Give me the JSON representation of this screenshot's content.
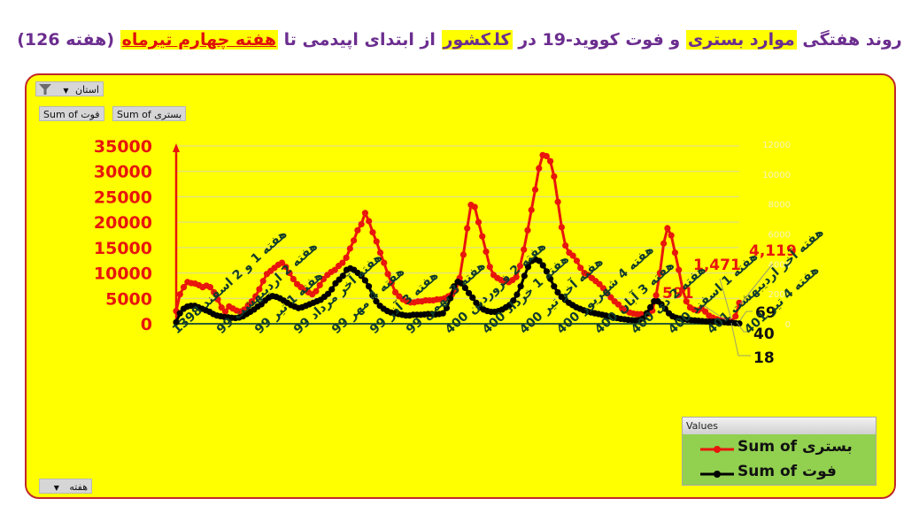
{
  "title": {
    "parts": [
      {
        "text": "روند هفتگی ",
        "style": "plain"
      },
      {
        "text": "موارد بستری",
        "style": "hl"
      },
      {
        "text": " و فوت کووید-19 در ",
        "style": "plain"
      },
      {
        "text": "کل",
        "style": "hl"
      },
      {
        "text": "کشور",
        "style": "hl"
      },
      {
        "text": " از ابتدای اپیدمی تا ",
        "style": "plain"
      },
      {
        "text": "هفته چهارم تیرماه",
        "style": "hl-red"
      },
      {
        "text": " (هفته 126)",
        "style": "plain"
      }
    ]
  },
  "controls": {
    "province_filter": "استان",
    "sum_hospitalized": "Sum of بستری",
    "sum_deaths": "Sum of فوت",
    "week_field": "هفته"
  },
  "legend": {
    "header": "Values",
    "items": [
      {
        "label": "Sum of بستری",
        "color": "#e8160c"
      },
      {
        "label": "Sum of فوت",
        "color": "#000000"
      }
    ]
  },
  "chart_data": {
    "type": "line",
    "title": "روند هفتگی موارد بستری و فوت کووید-19 در کل کشور از ابتدای اپیدمی تا هفته چهارم تیرماه (هفته 126)",
    "xlabel": "هفته",
    "ylabel": "",
    "ylim": [
      0,
      35000
    ],
    "y2lim": [
      0,
      12000
    ],
    "y_ticks": [
      0,
      5000,
      10000,
      15000,
      20000,
      25000,
      30000,
      35000
    ],
    "y2_ticks": [
      0,
      2000,
      4000,
      6000,
      8000,
      10000,
      12000
    ],
    "grid": true,
    "legend_position": "bottom-right",
    "categories": [
      "هفته 1 و 2 اسفند 1398",
      "هفته 2 اردیبهشت 99",
      "هفته 1 تیر 99",
      "هفته آخر مرداد 99",
      "هفته 4 مهر 99",
      "هفته 3 آذر 99",
      "هفته 3 بهمن 99",
      "هفته 2 فروردین 400",
      "هفته 1 خرداد 400",
      "هفته آخر تیر 400",
      "هفته 4 شهریور 400",
      "هفته 3 آبان 400",
      "هفته 2 دی 400",
      "هفته 1 اسفند 400",
      "هفته آخر اردیبهشت 401",
      "هفته 4 تیر 401"
    ],
    "series": [
      {
        "name": "Sum of بستری",
        "axis": "left",
        "color": "#e8160c",
        "values": [
          2500,
          5800,
          7200,
          8200,
          8000,
          7900,
          7600,
          7200,
          7500,
          7200,
          6200,
          4800,
          3200,
          2400,
          3400,
          3000,
          2600,
          2400,
          2800,
          3600,
          4400,
          5400,
          6800,
          8400,
          9800,
          10400,
          11000,
          11600,
          12000,
          11200,
          10000,
          8800,
          7800,
          7200,
          6600,
          6200,
          5800,
          6400,
          7600,
          8800,
          9600,
          10200,
          10600,
          11400,
          12000,
          13000,
          14800,
          16400,
          18400,
          19600,
          21800,
          20200,
          18000,
          16200,
          14000,
          12000,
          9800,
          8000,
          6200,
          5400,
          4800,
          4400,
          4200,
          4200,
          4400,
          4400,
          4600,
          4600,
          4600,
          4800,
          4800,
          5000,
          5400,
          5800,
          6600,
          9000,
          13600,
          18800,
          23400,
          23000,
          20000,
          17200,
          14200,
          11200,
          9600,
          9000,
          8600,
          8400,
          8200,
          8600,
          9200,
          11400,
          14600,
          18400,
          22400,
          26400,
          30600,
          33200,
          33000,
          32000,
          29000,
          24000,
          19000,
          15400,
          14000,
          13400,
          12400,
          11000,
          10000,
          9600,
          9000,
          8400,
          7800,
          7000,
          6000,
          5200,
          4400,
          3800,
          3000,
          2600,
          2200,
          2000,
          1900,
          1900,
          1800,
          2000,
          2600,
          5600,
          10000,
          15800,
          18800,
          17400,
          14000,
          10600,
          6800,
          4400,
          3200,
          2800,
          2600,
          3000,
          2400,
          1600,
          1200,
          900,
          700,
          600,
          591,
          500,
          1471,
          4119
        ],
        "annotations": [
          {
            "label": "591"
          },
          {
            "label": "1,471"
          },
          {
            "label": "4,119"
          }
        ]
      },
      {
        "name": "Sum of فوت",
        "axis": "right",
        "color": "#000000",
        "values": [
          100,
          700,
          1000,
          1150,
          1200,
          1200,
          1100,
          1000,
          900,
          800,
          650,
          550,
          500,
          450,
          430,
          400,
          380,
          420,
          500,
          650,
          800,
          950,
          1150,
          1300,
          1550,
          1750,
          1850,
          1800,
          1700,
          1550,
          1400,
          1250,
          1150,
          1050,
          1100,
          1200,
          1300,
          1400,
          1500,
          1600,
          1800,
          2000,
          2300,
          2700,
          2950,
          3200,
          3600,
          3700,
          3600,
          3400,
          3200,
          2900,
          2500,
          1900,
          1500,
          1200,
          1000,
          850,
          750,
          700,
          650,
          600,
          550,
          550,
          600,
          600,
          600,
          620,
          650,
          650,
          620,
          650,
          700,
          1050,
          1700,
          2500,
          2800,
          2700,
          2400,
          2050,
          1750,
          1400,
          1100,
          950,
          850,
          800,
          800,
          850,
          950,
          1100,
          1250,
          1550,
          1950,
          2500,
          3200,
          3800,
          4200,
          4300,
          4200,
          3900,
          3500,
          3000,
          2500,
          2100,
          1800,
          1600,
          1400,
          1250,
          1100,
          1000,
          900,
          820,
          760,
          700,
          650,
          600,
          550,
          480,
          420,
          380,
          330,
          300,
          260,
          240,
          230,
          250,
          350,
          700,
          1100,
          1500,
          1500,
          1300,
          1000,
          700,
          500,
          400,
          350,
          300,
          270,
          240,
          220,
          200,
          180,
          160,
          150,
          140,
          130,
          120,
          100,
          80,
          69,
          40,
          18
        ],
        "annotations": [
          {
            "label": "69"
          },
          {
            "label": "40"
          },
          {
            "label": "18"
          }
        ]
      }
    ]
  }
}
